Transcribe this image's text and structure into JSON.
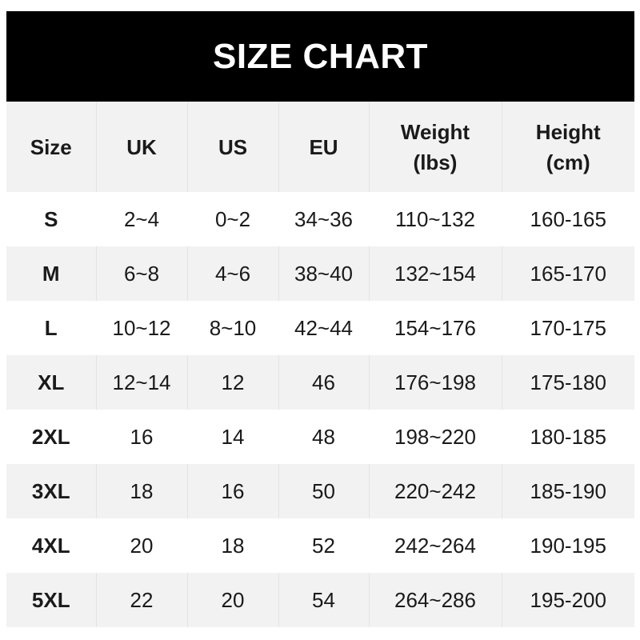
{
  "title": "SIZE CHART",
  "headers": [
    "Size",
    "UK",
    "US",
    "EU",
    "Weight\n(lbs)",
    "Height\n(cm)"
  ],
  "header_lines": {
    "weight": [
      "Weight",
      "(lbs)"
    ],
    "height": [
      "Height",
      "(cm)"
    ]
  },
  "rows": [
    [
      "S",
      "2~4",
      "0~2",
      "34~36",
      "110~132",
      "160-165"
    ],
    [
      "M",
      "6~8",
      "4~6",
      "38~40",
      "132~154",
      "165-170"
    ],
    [
      "L",
      "10~12",
      "8~10",
      "42~44",
      "154~176",
      "170-175"
    ],
    [
      "XL",
      "12~14",
      "12",
      "46",
      "176~198",
      "175-180"
    ],
    [
      "2XL",
      "16",
      "14",
      "48",
      "198~220",
      "180-185"
    ],
    [
      "3XL",
      "18",
      "16",
      "50",
      "220~242",
      "185-190"
    ],
    [
      "4XL",
      "20",
      "18",
      "52",
      "242~264",
      "190-195"
    ],
    [
      "5XL",
      "22",
      "20",
      "54",
      "264~286",
      "195-200"
    ]
  ],
  "colors": {
    "title_bg": "#000000",
    "title_text": "#ffffff",
    "stripe": "#f2f2f2",
    "text": "#1a1a1a"
  }
}
